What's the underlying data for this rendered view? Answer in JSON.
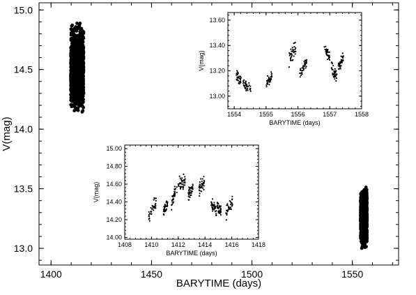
{
  "chart_data": [
    {
      "id": "main",
      "type": "scatter",
      "title": "",
      "xlabel": "BARYTIME (days)",
      "ylabel": "V(mag)",
      "xlim": [
        1394,
        1573
      ],
      "ylim": [
        15.06,
        12.86
      ],
      "y_inverted": true,
      "xticks": [
        1400,
        1450,
        1500,
        1550
      ],
      "xtick_labels": [
        "1400",
        "1450",
        "1500",
        "1550"
      ],
      "yticks": [
        13.0,
        13.5,
        14.0,
        14.5,
        15.0
      ],
      "ytick_labels": [
        "13.0",
        "13.5",
        "14.0",
        "14.5",
        "15.0"
      ],
      "grid": false,
      "legend": "none",
      "marker_color": "#000000",
      "clusters": [
        {
          "x_range": [
            1409.8,
            1416.2
          ],
          "y_range": [
            14.1,
            14.94
          ]
        },
        {
          "x_range": [
            1554.1,
            1557.3
          ],
          "y_range": [
            12.98,
            13.54
          ]
        }
      ]
    },
    {
      "id": "inset-right",
      "type": "scatter",
      "title": "",
      "xlabel": "BARYTIME (days)",
      "ylabel": "V(mag)",
      "xlim": [
        1553.8,
        1558.0
      ],
      "ylim": [
        13.66,
        12.9
      ],
      "y_inverted": true,
      "xticks": [
        1554,
        1555,
        1556,
        1557,
        1558
      ],
      "xtick_labels": [
        "1554",
        "1555",
        "1556",
        "1557",
        "1558"
      ],
      "yticks": [
        13.0,
        13.2,
        13.4,
        13.6
      ],
      "ytick_labels": [
        "13.00",
        "13.20",
        "13.40",
        "13.60"
      ],
      "grid": false,
      "legend": "none",
      "marker_color": "#000000",
      "segments": [
        {
          "x": [
            1554.05,
            1554.22
          ],
          "y0": 13.17,
          "y1": 13.11,
          "spread": 0.06
        },
        {
          "x": [
            1554.28,
            1554.52
          ],
          "y0": 13.1,
          "y1": 13.05,
          "spread": 0.05
        },
        {
          "x": [
            1555.0,
            1555.18
          ],
          "y0": 13.1,
          "y1": 13.16,
          "spread": 0.05
        },
        {
          "x": [
            1555.72,
            1555.95
          ],
          "y0": 13.28,
          "y1": 13.4,
          "spread": 0.07
        },
        {
          "x": [
            1556.05,
            1556.28
          ],
          "y0": 13.18,
          "y1": 13.26,
          "spread": 0.05
        },
        {
          "x": [
            1556.82,
            1557.02
          ],
          "y0": 13.37,
          "y1": 13.3,
          "spread": 0.05
        },
        {
          "x": [
            1557.05,
            1557.22
          ],
          "y0": 13.24,
          "y1": 13.14,
          "spread": 0.05
        },
        {
          "x": [
            1557.27,
            1557.45
          ],
          "y0": 13.22,
          "y1": 13.33,
          "spread": 0.05
        }
      ]
    },
    {
      "id": "inset-left",
      "type": "scatter",
      "title": "",
      "xlabel": "BARYTIME (days)",
      "ylabel": "V(mag)",
      "xlim": [
        1408,
        1418
      ],
      "ylim": [
        15.04,
        13.98
      ],
      "y_inverted": true,
      "xticks": [
        1408,
        1410,
        1412,
        1414,
        1416,
        1418
      ],
      "xtick_labels": [
        "1408",
        "1410",
        "1412",
        "1414",
        "1416",
        "1418"
      ],
      "yticks": [
        14.0,
        14.2,
        14.4,
        14.6,
        14.8,
        15.0
      ],
      "ytick_labels": [
        "14.00",
        "14.20",
        "14.40",
        "14.60",
        "14.80",
        "15.00"
      ],
      "grid": false,
      "legend": "none",
      "marker_color": "#000000",
      "segments": [
        {
          "x": [
            1409.8,
            1410.35
          ],
          "y0": 14.26,
          "y1": 14.4,
          "spread": 0.1
        },
        {
          "x": [
            1410.9,
            1411.2
          ],
          "y0": 14.3,
          "y1": 14.38,
          "spread": 0.06
        },
        {
          "x": [
            1411.5,
            1411.9
          ],
          "y0": 14.38,
          "y1": 14.58,
          "spread": 0.1
        },
        {
          "x": [
            1412.0,
            1412.55
          ],
          "y0": 14.58,
          "y1": 14.66,
          "spread": 0.1
        },
        {
          "x": [
            1412.75,
            1413.1
          ],
          "y0": 14.48,
          "y1": 14.56,
          "spread": 0.08
        },
        {
          "x": [
            1413.55,
            1413.95
          ],
          "y0": 14.54,
          "y1": 14.62,
          "spread": 0.1
        },
        {
          "x": [
            1414.45,
            1414.85
          ],
          "y0": 14.4,
          "y1": 14.3,
          "spread": 0.08
        },
        {
          "x": [
            1414.9,
            1415.2
          ],
          "y0": 14.36,
          "y1": 14.3,
          "spread": 0.08
        },
        {
          "x": [
            1415.55,
            1416.05
          ],
          "y0": 14.28,
          "y1": 14.4,
          "spread": 0.1
        }
      ]
    }
  ]
}
